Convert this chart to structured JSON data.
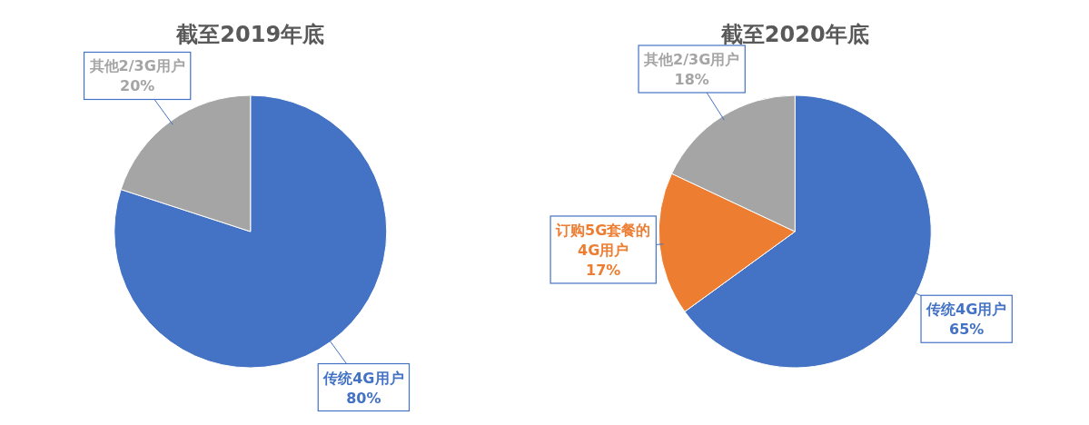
{
  "chart_data": [
    {
      "type": "pie",
      "title": "截至2019年底",
      "categories": [
        "传统4G用户",
        "其他2/3G用户"
      ],
      "values": [
        80,
        20
      ],
      "colors": [
        "#4472c4",
        "#a5a5a5"
      ],
      "value_labels": [
        "80%",
        "20%"
      ]
    },
    {
      "type": "pie",
      "title": "截至2020年底",
      "categories": [
        "传统4G用户",
        "订购5G套餐的4G用户",
        "其他2/3G用户"
      ],
      "values": [
        65,
        17,
        18
      ],
      "colors": [
        "#4472c4",
        "#ed7d31",
        "#a5a5a5"
      ],
      "value_labels": [
        "65%",
        "17%",
        "18%"
      ]
    }
  ]
}
